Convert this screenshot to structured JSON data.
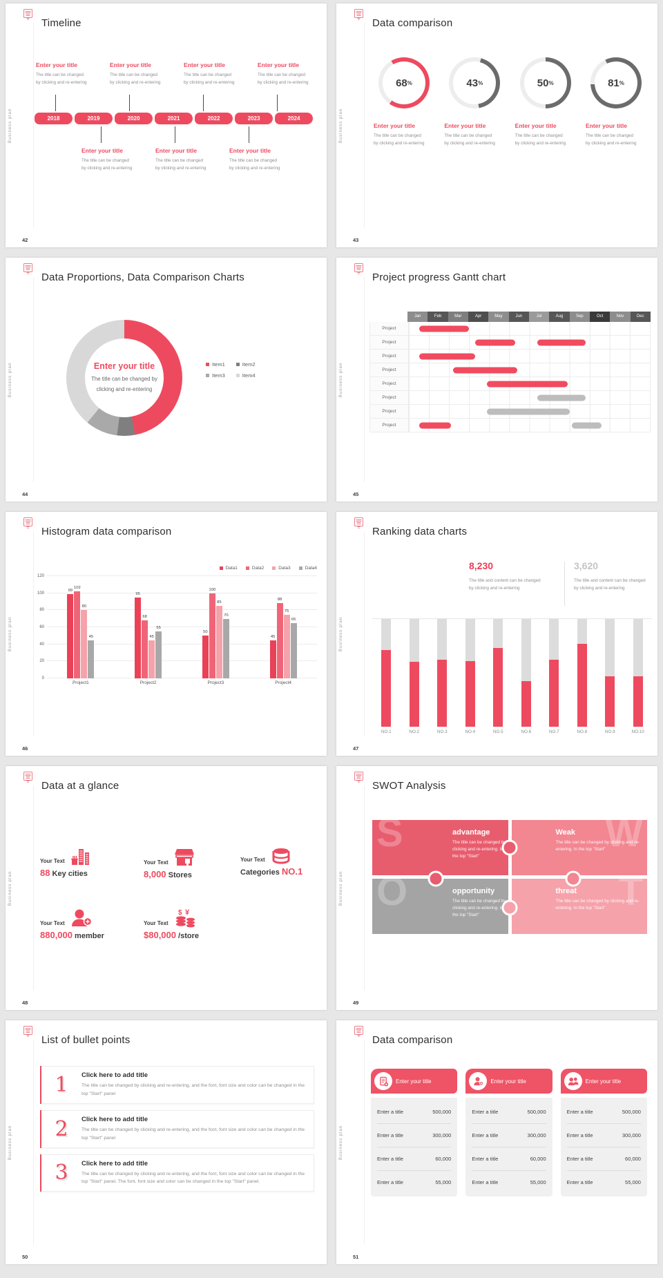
{
  "sheet": {
    "brand_vertical": "Business plan",
    "accent": "#ee4a5f"
  },
  "slides": {
    "timeline": {
      "number": "42",
      "title": "Timeline",
      "years": [
        "2018",
        "2019",
        "2020",
        "2021",
        "2022",
        "2023",
        "2024"
      ],
      "item_title": "Enter your title",
      "item_caption_l1": "The title can be changed",
      "item_caption_l2": "by clicking and re-entering",
      "top_count": 4,
      "bottom_count": 3
    },
    "donuts": {
      "number": "43",
      "title": "Data comparison",
      "item_title": "Enter your title",
      "item_caption_l1": "The title can be changed",
      "item_caption_l2": "by clicking and re-entering",
      "chart_data": {
        "type": "donut-progress",
        "values": [
          68,
          43,
          50,
          81
        ],
        "unit": "%",
        "arc_colors": [
          "#ee4a5f",
          "#6b6b6b",
          "#6b6b6b",
          "#6b6b6b"
        ],
        "rotations_deg": [
          -30,
          15,
          0,
          -25
        ],
        "track_color": "#ededed"
      }
    },
    "pie": {
      "number": "44",
      "title": "Data Proportions, Data Comparison Charts",
      "center_title": "Enter your title",
      "center_caption_l1": "The title can be changed by",
      "center_caption_l2": "clicking and re-entering",
      "chart_data": {
        "type": "donut",
        "segments": [
          {
            "label": "Item1",
            "value": 47,
            "color": "#ee4a5f"
          },
          {
            "label": "Item2",
            "value": 5,
            "color": "#7f7f7f"
          },
          {
            "label": "Item3",
            "value": 9,
            "color": "#a9a9a9"
          },
          {
            "label": "Item4",
            "value": 39,
            "color": "#d8d8d8"
          }
        ],
        "legend_position": "right"
      }
    },
    "gantt": {
      "number": "45",
      "title": "Project progress Gantt chart",
      "row_label": "Project",
      "chart_data": {
        "type": "gantt",
        "months": [
          {
            "label": "Jan",
            "color": "#8d8d8d"
          },
          {
            "label": "Feb",
            "color": "#565656"
          },
          {
            "label": "Mar",
            "color": "#7e7e7e"
          },
          {
            "label": "Apr",
            "color": "#4e4e4e"
          },
          {
            "label": "May",
            "color": "#8d8d8d"
          },
          {
            "label": "Jun",
            "color": "#565656"
          },
          {
            "label": "Jul",
            "color": "#9a9a9a"
          },
          {
            "label": "Aug",
            "color": "#565656"
          },
          {
            "label": "Sep",
            "color": "#8d8d8d"
          },
          {
            "label": "Oct",
            "color": "#3a3a3a"
          },
          {
            "label": "Nov",
            "color": "#8d8d8d"
          },
          {
            "label": "Dec",
            "color": "#565656"
          }
        ],
        "bar_colors": {
          "red": "#f04b5f",
          "gray": "#bdbdbd"
        },
        "rows": [
          {
            "bars": [
              {
                "start": 0.5,
                "end": 3.0,
                "color": "red"
              }
            ]
          },
          {
            "bars": [
              {
                "start": 3.3,
                "end": 5.3,
                "color": "red"
              },
              {
                "start": 6.4,
                "end": 8.8,
                "color": "red"
              }
            ]
          },
          {
            "bars": [
              {
                "start": 0.5,
                "end": 3.3,
                "color": "red"
              }
            ]
          },
          {
            "bars": [
              {
                "start": 2.2,
                "end": 5.4,
                "color": "red"
              }
            ]
          },
          {
            "bars": [
              {
                "start": 3.9,
                "end": 7.9,
                "color": "red"
              }
            ]
          },
          {
            "bars": [
              {
                "start": 6.4,
                "end": 8.8,
                "color": "gray"
              }
            ]
          },
          {
            "bars": [
              {
                "start": 3.9,
                "end": 8.0,
                "color": "gray"
              }
            ]
          },
          {
            "bars": [
              {
                "start": 0.5,
                "end": 2.1,
                "color": "red"
              },
              {
                "start": 8.1,
                "end": 9.6,
                "color": "gray"
              }
            ]
          }
        ]
      }
    },
    "histogram": {
      "number": "46",
      "title": "Histogram data comparison",
      "chart_data": {
        "type": "bar",
        "categories": [
          "Project1",
          "Project2",
          "Project3",
          "Project4"
        ],
        "series": [
          {
            "name": "Data1",
            "color": "#ea4157",
            "values": [
              99,
              95,
              50,
              45
            ]
          },
          {
            "name": "Data2",
            "color": "#ef6577",
            "values": [
              102,
              68,
              100,
              88
            ]
          },
          {
            "name": "Data3",
            "color": "#f5a2ab",
            "values": [
              80,
              45,
              85,
              75
            ]
          },
          {
            "name": "Data4",
            "color": "#a8a8a8",
            "values": [
              45,
              55,
              70,
              65
            ]
          }
        ],
        "ylim": [
          0,
          120
        ],
        "yticks": [
          0,
          20,
          40,
          60,
          80,
          100,
          120
        ],
        "legend_position": "top-right",
        "value_labels": true
      }
    },
    "ranking": {
      "number": "47",
      "title": "Ranking data charts",
      "stats": [
        {
          "value": "8,230",
          "color": "#ee3b54",
          "caption_l1": "The title and content can be changed",
          "caption_l2": "by clicking and re-entering"
        },
        {
          "value": "3,620",
          "color": "#c4c4c4",
          "caption_l1": "The title and content can be changed",
          "caption_l2": "by clicking and re-entering"
        }
      ],
      "chart_data": {
        "type": "stacked-bar",
        "categories": [
          "NO.1",
          "NO.2",
          "NO.3",
          "NO.4",
          "NO.5",
          "NO.6",
          "NO.7",
          "NO.8",
          "NO.9",
          "NO.10"
        ],
        "fill_pct": [
          71,
          60,
          62,
          61,
          73,
          42,
          62,
          77,
          47,
          47
        ],
        "fill_color": "#ee4a5f",
        "track_color": "#dcdcdc"
      }
    },
    "glance": {
      "number": "48",
      "title": "Data at a glance",
      "label": "Your Text",
      "stats": [
        {
          "icon": "buildings-icon",
          "parts": [
            {
              "t": "88",
              "red": true
            },
            {
              "t": " Key cities",
              "red": false
            }
          ]
        },
        {
          "icon": "store-icon",
          "parts": [
            {
              "t": "8,000",
              "red": true
            },
            {
              "t": " Stores",
              "red": false
            }
          ]
        },
        {
          "icon": "database-icon",
          "parts": [
            {
              "t": "Categories ",
              "red": false
            },
            {
              "t": "NO.1",
              "red": true
            }
          ]
        },
        {
          "icon": "member-add-icon",
          "parts": [
            {
              "t": "880,000",
              "red": true
            },
            {
              "t": " member",
              "red": false
            }
          ]
        },
        {
          "icon": "coins-icon",
          "parts": [
            {
              "t": "$80,000",
              "red": true
            },
            {
              "t": " /store",
              "red": false
            }
          ]
        }
      ]
    },
    "swot": {
      "number": "49",
      "title": "SWOT Analysis",
      "quads": [
        {
          "letter": "S",
          "heading": "advantage",
          "body": "The title can be changed by clicking and re-entering. In the top \"Start\"",
          "color": "#e85d6e",
          "letter_side": "left"
        },
        {
          "letter": "W",
          "heading": "Weak",
          "body": "The title can be changed by clicking and re-entering. In the top \"Start\"",
          "color": "#f28691",
          "letter_side": "right"
        },
        {
          "letter": "O",
          "heading": "opportunity",
          "body": "The title can be changed by clicking and re-entering. In the top \"Start\"",
          "color": "#a4a4a4",
          "letter_side": "left"
        },
        {
          "letter": "T",
          "heading": "threat",
          "body": "The title can be changed by clicking and re-entering. In the top \"Start\"",
          "color": "#f5a2ab",
          "letter_side": "right"
        }
      ]
    },
    "bullets": {
      "number": "50",
      "title": "List of bullet points",
      "items": [
        {
          "num": "1",
          "heading": "Click here to add title",
          "body": "The title can be changed by clicking and re-entering, and the font, font size and color can be changed in the top \"Start\" panel"
        },
        {
          "num": "2",
          "heading": "Click here to add title",
          "body": "The title can be changed by clicking and re-entering, and the font, font size and color can be changed in the top \"Start\" panel"
        },
        {
          "num": "3",
          "heading": "Click here to add title",
          "body": "The title can be changed by clicking and re-entering, and the font, font size and color can be changed in the top \"Start\" panel. The font, font size and color can be changed in the top \"Start\" panel."
        }
      ]
    },
    "tables": {
      "number": "51",
      "title": "Data comparison",
      "header": "Enter your title",
      "row_label": "Enter a title",
      "cards": [
        {
          "icon": "doc-add-icon",
          "values": [
            "500,000",
            "300,000",
            "60,000",
            "55,000"
          ]
        },
        {
          "icon": "person-add-icon",
          "values": [
            "500,000",
            "300,000",
            "60,000",
            "55,000"
          ]
        },
        {
          "icon": "people-icon",
          "values": [
            "500,000",
            "300,000",
            "60,000",
            "55,000"
          ]
        }
      ]
    }
  }
}
